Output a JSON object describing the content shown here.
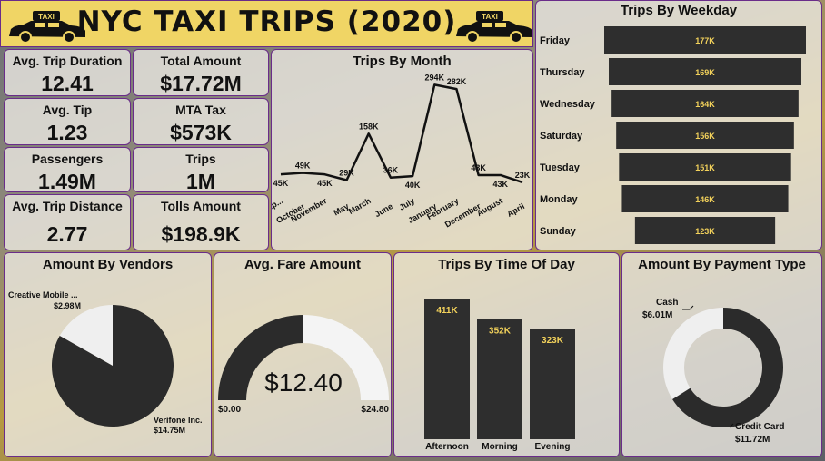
{
  "header": {
    "title": "NYC TAXI TRIPS (2020)",
    "taxi_sign": "TAXI"
  },
  "kpis": {
    "avg_trip_duration": {
      "label": "Avg. Trip Duration",
      "value": "12.41"
    },
    "total_amount": {
      "label": "Total Amount",
      "value": "$17.72M"
    },
    "avg_tip": {
      "label": "Avg. Tip",
      "value": "1.23"
    },
    "mta_tax": {
      "label": "MTA Tax",
      "value": "$573K"
    },
    "passengers": {
      "label": "Passengers",
      "value": "1.49M"
    },
    "trips": {
      "label": "Trips",
      "value": "1M"
    },
    "avg_trip_distance": {
      "label": "Avg. Trip Distance",
      "value": "2.77"
    },
    "tolls_amount": {
      "label": "Tolls Amount",
      "value": "$198.9K"
    }
  },
  "chart_data": [
    {
      "type": "line",
      "title": "Trips By Month",
      "categories": [
        "Sep...",
        "October",
        "November",
        "May",
        "March",
        "June",
        "July",
        "January",
        "February",
        "December",
        "August",
        "April"
      ],
      "values": [
        45,
        49,
        45,
        29,
        158,
        36,
        40,
        294,
        282,
        43,
        43,
        23
      ],
      "labels": [
        "45K",
        "49K",
        "45K",
        "29K",
        "158K",
        "36K",
        "40K",
        "294K",
        "282K",
        "43K",
        "43K",
        "23K"
      ]
    },
    {
      "type": "bar",
      "title": "Trips By Weekday",
      "categories": [
        "Friday",
        "Thursday",
        "Wednesday",
        "Saturday",
        "Tuesday",
        "Monday",
        "Sunday"
      ],
      "values": [
        177,
        169,
        164,
        156,
        151,
        146,
        123
      ],
      "labels": [
        "177K",
        "169K",
        "164K",
        "156K",
        "151K",
        "146K",
        "123K"
      ]
    },
    {
      "type": "pie",
      "title": "Amount By Vendors",
      "categories": [
        "Creative Mobile ...",
        "Verifone Inc."
      ],
      "values": [
        2.98,
        14.75
      ],
      "labels": [
        "$2.98M",
        "$14.75M"
      ],
      "colors": [
        "#efefef",
        "#2b2b2b"
      ]
    },
    {
      "type": "gauge",
      "title": "Avg. Fare Amount",
      "value": 12.4,
      "min": 0,
      "max": 24.8,
      "value_label": "$12.40",
      "min_label": "$0.00",
      "max_label": "$24.80"
    },
    {
      "type": "bar",
      "title": "Trips By Time Of Day",
      "categories": [
        "Afternoon",
        "Morning",
        "Evening"
      ],
      "values": [
        411,
        352,
        323
      ],
      "labels": [
        "411K",
        "352K",
        "323K"
      ]
    },
    {
      "type": "pie",
      "title": "Amount By Payment Type",
      "categories": [
        "Cash",
        "Credit Card"
      ],
      "values": [
        6.01,
        11.72
      ],
      "labels": [
        "$6.01M",
        "$11.72M"
      ],
      "colors": [
        "#efefef",
        "#2b2b2b"
      ]
    }
  ],
  "colors": {
    "bar": "#2e2e2e",
    "bar_label": "#f3d25b",
    "border": "#6a2c8a",
    "header": "#f0d565"
  }
}
